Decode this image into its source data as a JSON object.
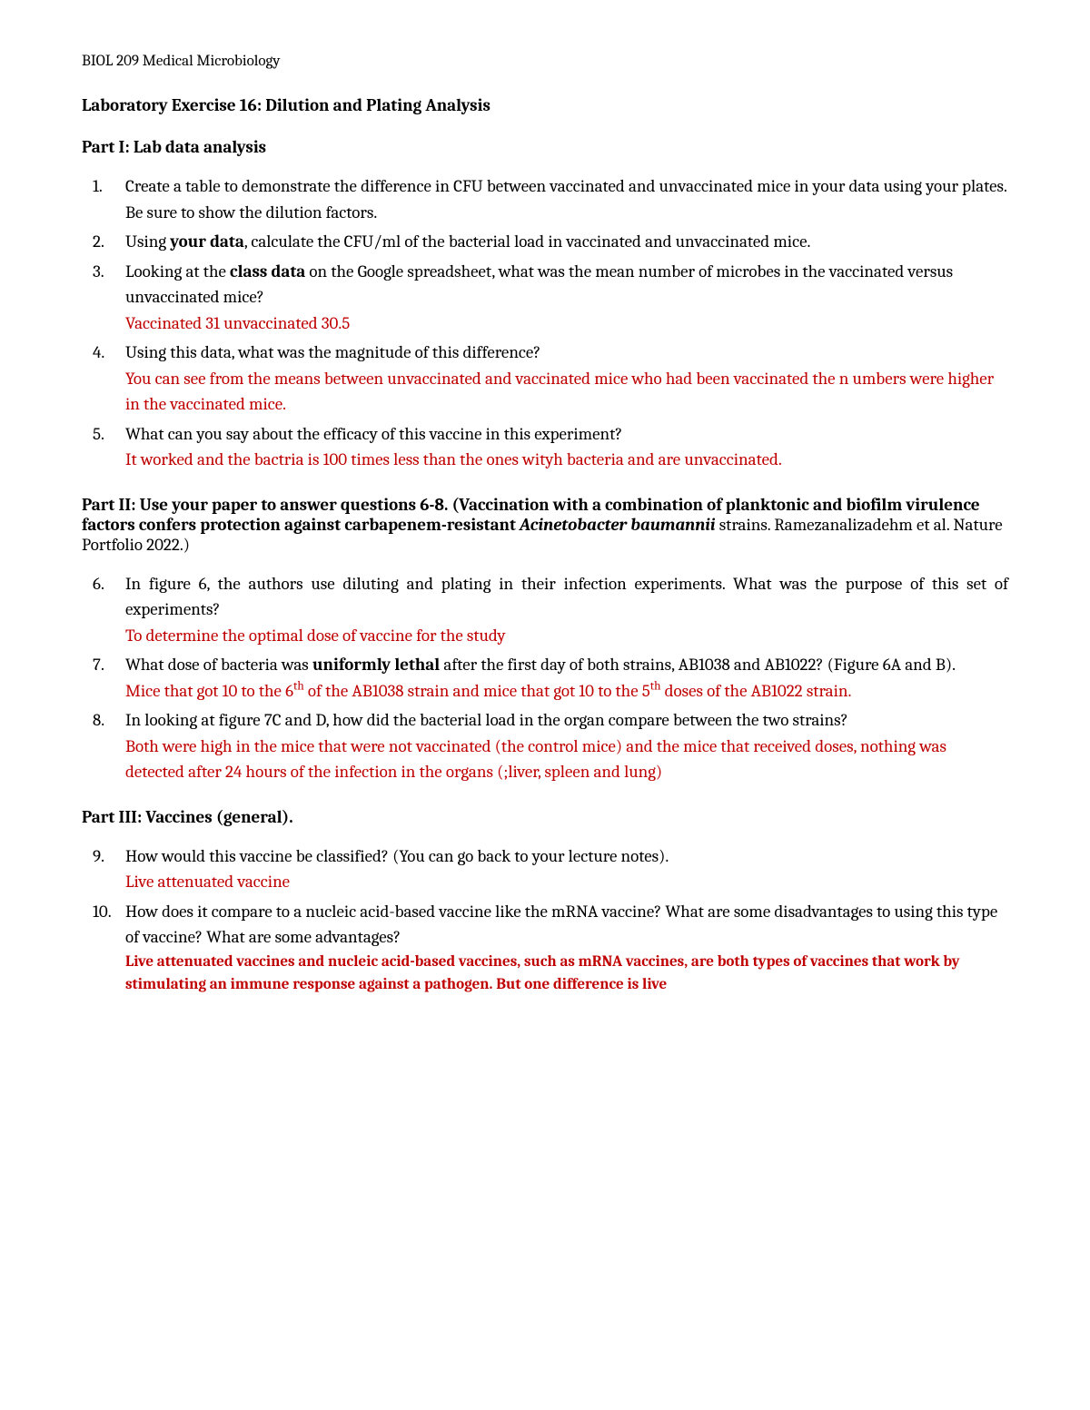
{
  "course_header": "BIOL 209 Medical Microbiology",
  "main_title": "Laboratory Exercise 16:  Dilution and Plating Analysis",
  "part1": {
    "heading": "Part I:  Lab data analysis",
    "q1": "Create a table to demonstrate the difference in CFU between vaccinated and unvaccinated mice in your data using your plates.  Be sure to show the dilution factors.",
    "q2_pre": "Using ",
    "q2_bold": "your data",
    "q2_post": ", calculate the CFU/ml of the bacterial load in vaccinated and unvaccinated mice.",
    "q3_pre": "Looking at the ",
    "q3_bold": "class data",
    "q3_post": " on the Google spreadsheet, what was the mean number of microbes in the vaccinated versus unvaccinated mice?",
    "q3_ans": "Vaccinated 31 unvaccinated 30.5",
    "q4": "Using this data, what was the magnitude of this difference?",
    "q4_ans": "You can see from the means between unvaccinated and vaccinated mice who had been vaccinated the n umbers were higher in the vaccinated mice.",
    "q5": "What can you say about the efficacy of this vaccine in this experiment?",
    "q5_ans": "It worked and the bactria is 100 times less than the ones wityh bacteria and are unvaccinated."
  },
  "part2": {
    "heading_pre": "Part II:  Use your paper  to answer questions 6-8. (Vaccination with a combination of planktonic and biofilm virulence factors confers protection against carbapenem-resistant ",
    "heading_italic": "Acinetobacter baumannii",
    "heading_post": " strains.  Ramezanalizadehm et al. Nature Portfolio 2022.)",
    "q6": "In figure 6, the authors use diluting and plating in their infection experiments.  What was the purpose of this set of experiments?",
    "q6_ans": "To determine the optimal dose of vaccine for the study",
    "q7_pre": "What dose of bacteria was ",
    "q7_bold": "uniformly lethal",
    "q7_post": " after the first day of both strains, AB1038 and AB1022? (Figure 6A and B).",
    "q7_ans_a": "Mice that got 10 to the 6",
    "q7_ans_sup1": "th",
    "q7_ans_b": " of the AB1038 strain and mice that got 10 to the 5",
    "q7_ans_sup2": "th",
    "q7_ans_c": " doses of the AB1022 strain.",
    "q8": "In looking at figure 7C and D, how did the bacterial load in the organ compare between the two strains?",
    "q8_ans": "Both were high in the mice that were not vaccinated (the control mice) and the mice that received doses, nothing was detected after 24 hours of the infection in the organs (;liver, spleen and lung)"
  },
  "part3": {
    "heading": "Part III:  Vaccines (general).",
    "q9": "How would this vaccine be classified? (You can go back to your lecture notes).",
    "q9_ans": "Live attenuated vaccine",
    "q10": "How does it compare to a nucleic acid-based vaccine like the mRNA vaccine? What are some disadvantages to using this type of vaccine?  What are some advantages?",
    "q10_ans": "Live attenuated vaccines and nucleic acid-based vaccines, such as mRNA vaccines, are both types of vaccines that work by stimulating an immune response against a pathogen. But one difference is live"
  },
  "colors": {
    "text": "#000000",
    "answer": "#c00000",
    "background": "#ffffff"
  }
}
